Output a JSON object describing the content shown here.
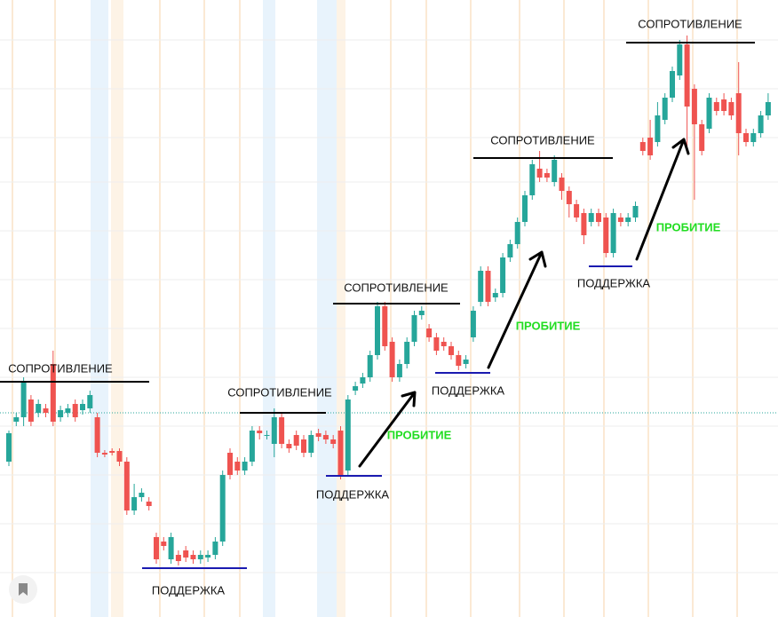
{
  "chart_data": {
    "type": "candlestick",
    "open": [
      175,
      220,
      225,
      245,
      230,
      235,
      285,
      225,
      230,
      240,
      233,
      235,
      225,
      185,
      187,
      187,
      175,
      120,
      135,
      130,
      90,
      85,
      65,
      70,
      75,
      70,
      65,
      67,
      70,
      85,
      185,
      175,
      165,
      175,
      210,
      205,
      195,
      225,
      195,
      205,
      200,
      185,
      207,
      205,
      200,
      210,
      165,
      255,
      263,
      270,
      295,
      350,
      310,
      270,
      285,
      310,
      340,
      325,
      315,
      310,
      305,
      295,
      285,
      315,
      355,
      390,
      360,
      365,
      405,
      420,
      445,
      475,
      505,
      500,
      490,
      495,
      480,
      465,
      455,
      445,
      455,
      450,
      410,
      450,
      445,
      450,
      535,
      540,
      535,
      560,
      585,
      610,
      645,
      595,
      555,
      550,
      580,
      583,
      580,
      590,
      545,
      535,
      545,
      565
    ],
    "high": [
      210,
      230,
      270,
      250,
      245,
      240,
      300,
      238,
      240,
      245,
      245,
      255,
      230,
      188,
      190,
      190,
      180,
      150,
      145,
      135,
      95,
      90,
      95,
      75,
      80,
      75,
      75,
      75,
      90,
      165,
      190,
      180,
      180,
      215,
      215,
      210,
      235,
      230,
      200,
      210,
      205,
      210,
      212,
      210,
      205,
      215,
      250,
      265,
      275,
      300,
      355,
      355,
      315,
      290,
      315,
      345,
      350,
      330,
      320,
      315,
      310,
      300,
      295,
      350,
      395,
      395,
      370,
      410,
      425,
      450,
      480,
      515,
      525,
      505,
      520,
      500,
      485,
      470,
      460,
      460,
      460,
      455,
      460,
      455,
      455,
      468,
      540,
      560,
      580,
      590,
      620,
      650,
      655,
      600,
      560,
      590,
      585,
      590,
      585,
      625,
      550,
      550,
      570,
      590
    ],
    "low": [
      170,
      215,
      215,
      215,
      225,
      225,
      215,
      220,
      225,
      220,
      228,
      230,
      180,
      180,
      182,
      170,
      115,
      115,
      130,
      120,
      60,
      75,
      60,
      58,
      62,
      60,
      60,
      62,
      65,
      80,
      155,
      160,
      160,
      170,
      200,
      200,
      180,
      190,
      185,
      188,
      180,
      180,
      198,
      195,
      190,
      155,
      160,
      250,
      258,
      265,
      290,
      300,
      265,
      265,
      280,
      305,
      335,
      310,
      295,
      300,
      290,
      278,
      280,
      310,
      350,
      350,
      355,
      360,
      400,
      415,
      440,
      470,
      490,
      490,
      485,
      470,
      450,
      445,
      420,
      440,
      440,
      405,
      405,
      440,
      440,
      445,
      520,
      515,
      530,
      555,
      580,
      605,
      525,
      470,
      520,
      545,
      565,
      565,
      560,
      520,
      530,
      530,
      540,
      560
    ],
    "close": [
      207,
      225,
      265,
      220,
      240,
      230,
      220,
      233,
      235,
      225,
      240,
      250,
      185,
      183,
      185,
      175,
      120,
      135,
      140,
      125,
      65,
      80,
      90,
      63,
      67,
      65,
      70,
      70,
      85,
      160,
      160,
      165,
      175,
      210,
      207,
      205,
      225,
      195,
      190,
      193,
      185,
      205,
      203,
      200,
      195,
      160,
      245,
      260,
      270,
      295,
      350,
      305,
      270,
      285,
      310,
      340,
      345,
      315,
      300,
      305,
      295,
      283,
      290,
      345,
      390,
      355,
      365,
      405,
      420,
      445,
      475,
      510,
      495,
      495,
      515,
      480,
      465,
      450,
      430,
      455,
      445,
      410,
      455,
      445,
      450,
      463,
      525,
      520,
      565,
      585,
      615,
      645,
      575,
      555,
      525,
      585,
      570,
      570,
      565,
      545,
      535,
      545,
      565,
      580
    ],
    "up_color": "#26a69a",
    "down_color": "#ef5350",
    "ylim": [
      0,
      695
    ],
    "price_line": 230,
    "price_line_color": "#26a69a",
    "levels": [
      {
        "label": "СОПРОТИВЛЕНИЕ",
        "value": 265,
        "color": "#000000"
      },
      {
        "label": "СОПРОТИВЛЕНИЕ",
        "value": 230,
        "color": "#000000"
      },
      {
        "label": "СОПРОТИВЛЕНИЕ",
        "value": 353,
        "color": "#000000"
      },
      {
        "label": "СОПРОТИВЛЕНИЕ",
        "value": 517,
        "color": "#000000"
      },
      {
        "label": "СОПРОТИВЛЕНИЕ",
        "value": 647,
        "color": "#000000"
      },
      {
        "label": "ПОДДЕРЖКА",
        "value": 55,
        "color": "#1a1ab0"
      },
      {
        "label": "ПОДДЕРЖКА",
        "value": 159,
        "color": "#1a1ab0"
      },
      {
        "label": "ПОДДЕРЖКА",
        "value": 275,
        "color": "#1a1ab0"
      },
      {
        "label": "ПОДДЕРЖКА",
        "value": 395,
        "color": "#1a1ab0"
      }
    ],
    "breakouts": [
      {
        "label": "ПРОБИТИЕ"
      },
      {
        "label": "ПРОБИТИЕ"
      },
      {
        "label": "ПРОБИТИЕ"
      }
    ],
    "breakout_color": "#22dd22"
  }
}
